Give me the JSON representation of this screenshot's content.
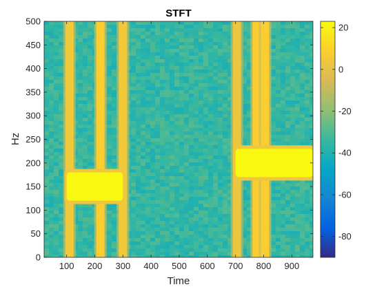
{
  "chart_data": {
    "type": "heatmap",
    "title": "STFT",
    "xlabel": "Time",
    "ylabel": "Hz",
    "xlim": [
      20,
      975
    ],
    "ylim": [
      0,
      500
    ],
    "xticks": [
      100,
      200,
      300,
      400,
      500,
      600,
      700,
      800,
      900
    ],
    "yticks": [
      0,
      50,
      100,
      150,
      200,
      250,
      300,
      350,
      400,
      450,
      500
    ],
    "colorbar": {
      "clim": [
        -90,
        23
      ],
      "ticks": [
        20,
        0,
        -20,
        -40,
        -60,
        -80
      ],
      "colormap": "parula"
    },
    "background_level_db": -35,
    "features": [
      {
        "kind": "broadband_impulse",
        "time": 110,
        "level_db": 5
      },
      {
        "kind": "broadband_impulse",
        "time": 220,
        "level_db": 8
      },
      {
        "kind": "broadband_impulse",
        "time": 300,
        "level_db": 5
      },
      {
        "kind": "broadband_impulse",
        "time": 705,
        "level_db": 3
      },
      {
        "kind": "broadband_impulse",
        "time": 775,
        "level_db": 8
      },
      {
        "kind": "broadband_impulse",
        "time": 805,
        "level_db": 8
      },
      {
        "kind": "tone",
        "time_start": 100,
        "time_end": 300,
        "freq_low": 120,
        "freq_high": 180,
        "level_db": 22
      },
      {
        "kind": "tone",
        "time_start": 700,
        "time_end": 975,
        "freq_low": 170,
        "freq_high": 230,
        "level_db": 22
      }
    ]
  }
}
